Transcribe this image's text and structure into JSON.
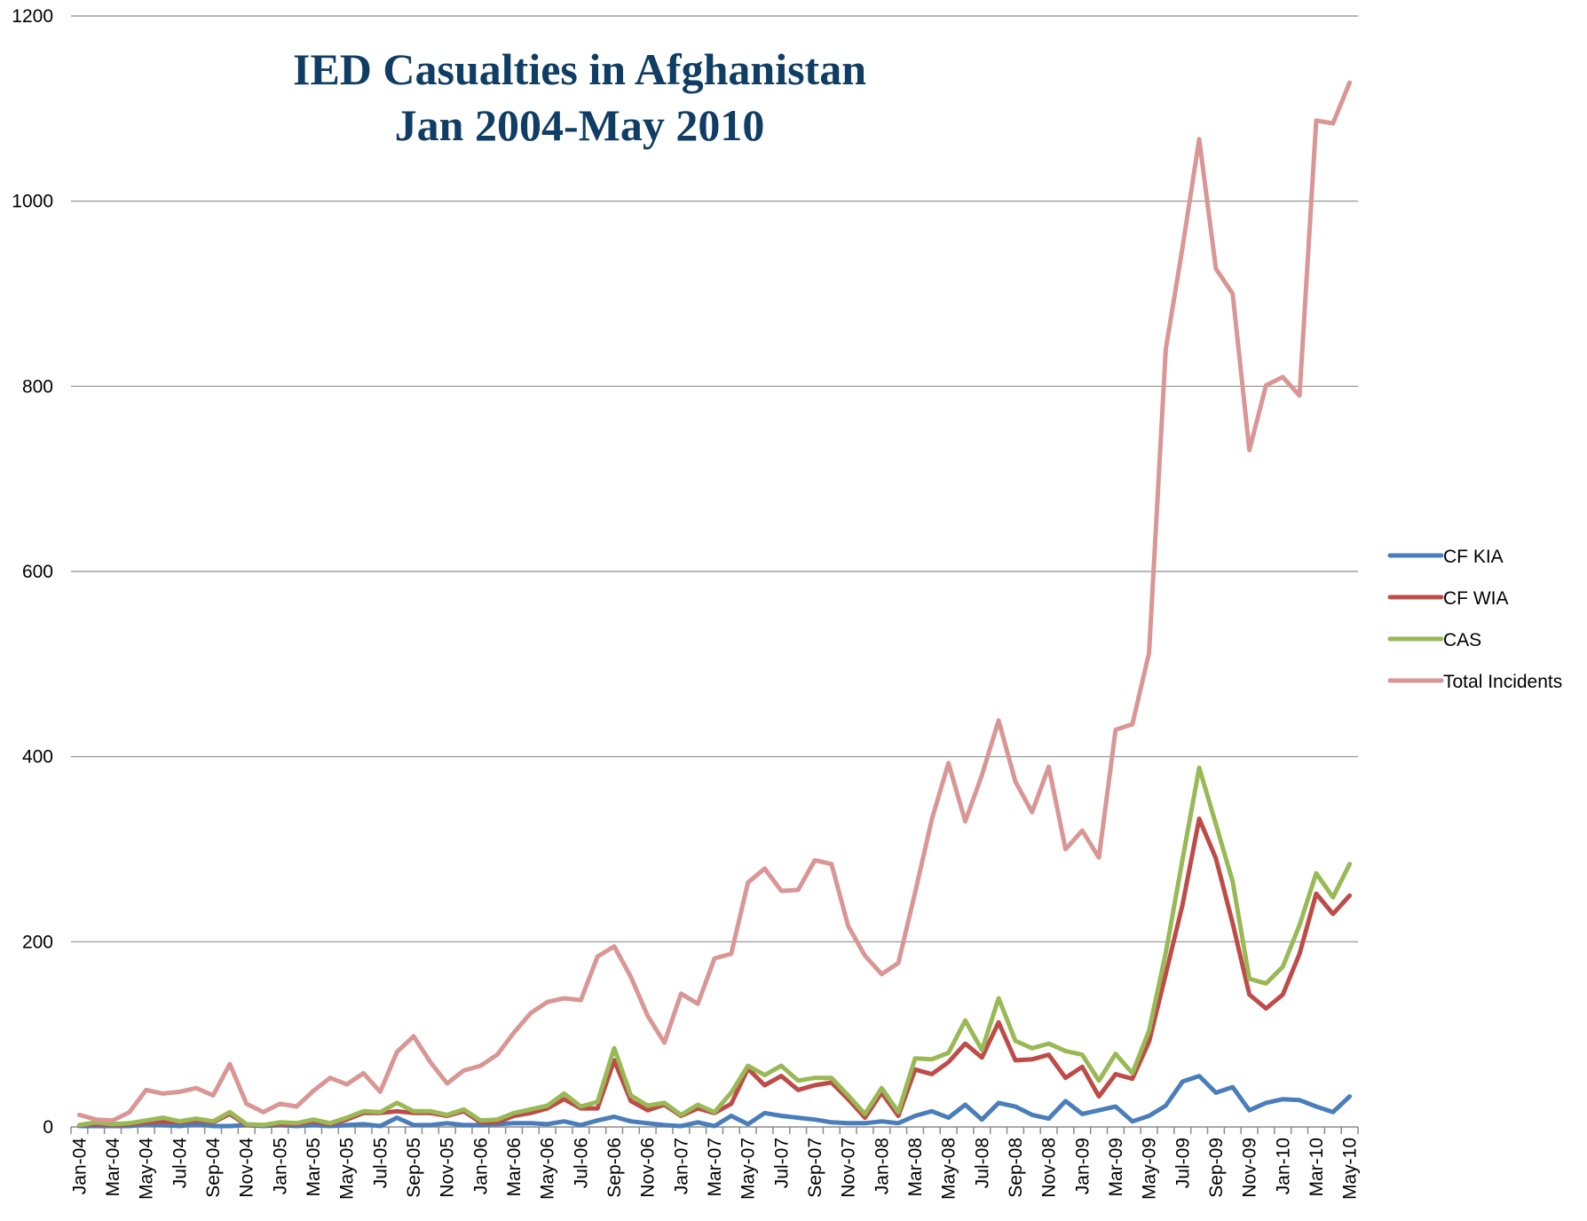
{
  "chart_data": {
    "type": "line",
    "title": [
      "IED Casualties in Afghanistan",
      "Jan 2004-May 2010"
    ],
    "xlabel": "",
    "ylabel": "",
    "ylim": [
      0,
      1200
    ],
    "yticks": [
      "0",
      "200",
      "400",
      "600",
      "800",
      "1000",
      "1200"
    ],
    "grid": "horizontal",
    "legend_position": "right",
    "x": [
      "Jan-04",
      "Feb-04",
      "Mar-04",
      "Apr-04",
      "May-04",
      "Jun-04",
      "Jul-04",
      "Aug-04",
      "Sep-04",
      "Oct-04",
      "Nov-04",
      "Dec-04",
      "Jan-05",
      "Feb-05",
      "Mar-05",
      "Apr-05",
      "May-05",
      "Jun-05",
      "Jul-05",
      "Aug-05",
      "Sep-05",
      "Oct-05",
      "Nov-05",
      "Dec-05",
      "Jan-06",
      "Feb-06",
      "Mar-06",
      "Apr-06",
      "May-06",
      "Jun-06",
      "Jul-06",
      "Aug-06",
      "Sep-06",
      "Oct-06",
      "Nov-06",
      "Dec-06",
      "Jan-07",
      "Feb-07",
      "Mar-07",
      "Apr-07",
      "May-07",
      "Jun-07",
      "Jul-07",
      "Aug-07",
      "Sep-07",
      "Oct-07",
      "Nov-07",
      "Dec-07",
      "Jan-08",
      "Feb-08",
      "Mar-08",
      "Apr-08",
      "May-08",
      "Jun-08",
      "Jul-08",
      "Aug-08",
      "Sep-08",
      "Oct-08",
      "Nov-08",
      "Dec-08",
      "Jan-09",
      "Feb-09",
      "Mar-09",
      "Apr-09",
      "May-09",
      "Jun-09",
      "Jul-09",
      "Aug-09",
      "Sep-09",
      "Oct-09",
      "Nov-09",
      "Dec-09",
      "Jan-10",
      "Feb-10",
      "Mar-10",
      "Apr-10",
      "May-10"
    ],
    "xtick_labels": [
      "Jan-04",
      "Mar-04",
      "May-04",
      "Jul-04",
      "Sep-04",
      "Nov-04",
      "Jan-05",
      "Mar-05",
      "May-05",
      "Jul-05",
      "Sep-05",
      "Nov-05",
      "Jan-06",
      "Mar-06",
      "May-06",
      "Jul-06",
      "Sep-06",
      "Nov-06",
      "Jan-07",
      "Mar-07",
      "May-07",
      "Jul-07",
      "Sep-07",
      "Nov-07",
      "Jan-08",
      "Mar-08",
      "May-08",
      "Jul-08",
      "Sep-08",
      "Nov-08",
      "Jan-09",
      "Mar-09",
      "May-09",
      "Jul-09",
      "Sep-09",
      "Nov-09",
      "Jan-10",
      "Mar-10",
      "May-10"
    ],
    "series": [
      {
        "name": "CF KIA",
        "color": "#4a7ebb",
        "values": [
          1,
          1,
          1,
          1,
          3,
          2,
          1,
          3,
          1,
          1,
          2,
          1,
          2,
          1,
          2,
          1,
          2,
          3,
          1,
          10,
          2,
          2,
          4,
          2,
          2,
          3,
          4,
          4,
          3,
          6,
          2,
          7,
          11,
          6,
          4,
          2,
          1,
          5,
          1,
          12,
          3,
          15,
          12,
          10,
          8,
          5,
          4,
          4,
          6,
          4,
          12,
          17,
          10,
          24,
          8,
          26,
          22,
          13,
          9,
          28,
          14,
          18,
          22,
          6,
          12,
          23,
          49,
          55,
          37,
          43,
          18,
          26,
          30,
          29,
          22,
          16,
          33
        ]
      },
      {
        "name": "CF WIA",
        "color": "#be4b48",
        "values": [
          2,
          3,
          2,
          3,
          5,
          6,
          5,
          7,
          5,
          14,
          2,
          2,
          3,
          3,
          6,
          3,
          8,
          15,
          15,
          17,
          15,
          15,
          12,
          17,
          5,
          5,
          12,
          15,
          20,
          30,
          20,
          20,
          72,
          28,
          18,
          24,
          12,
          20,
          15,
          25,
          63,
          45,
          55,
          40,
          45,
          48,
          30,
          10,
          37,
          12,
          62,
          57,
          70,
          90,
          75,
          113,
          72,
          73,
          78,
          53,
          65,
          33,
          57,
          52,
          92,
          165,
          240,
          333,
          290,
          220,
          143,
          128,
          143,
          187,
          252,
          230,
          250
        ]
      },
      {
        "name": "CAS",
        "color": "#98b954",
        "values": [
          2,
          5,
          3,
          4,
          7,
          10,
          6,
          9,
          6,
          16,
          3,
          2,
          5,
          4,
          8,
          4,
          10,
          17,
          16,
          26,
          17,
          17,
          13,
          19,
          7,
          8,
          15,
          19,
          23,
          36,
          22,
          27,
          85,
          34,
          23,
          26,
          13,
          24,
          16,
          37,
          66,
          56,
          66,
          50,
          53,
          53,
          34,
          14,
          42,
          16,
          74,
          73,
          80,
          115,
          83,
          139,
          93,
          85,
          90,
          82,
          78,
          50,
          79,
          58,
          104,
          188,
          289,
          388,
          327,
          265,
          160,
          155,
          173,
          218,
          274,
          248,
          284
        ]
      },
      {
        "name": "Total Incidents",
        "color": "#d99694",
        "values": [
          13,
          8,
          7,
          16,
          40,
          36,
          38,
          42,
          34,
          68,
          25,
          16,
          25,
          22,
          39,
          53,
          46,
          58,
          38,
          81,
          98,
          70,
          47,
          61,
          66,
          78,
          102,
          123,
          135,
          139,
          137,
          184,
          195,
          162,
          120,
          91,
          144,
          133,
          182,
          187,
          264,
          279,
          255,
          256,
          288,
          284,
          217,
          185,
          165,
          177,
          253,
          332,
          393,
          330,
          380,
          439,
          373,
          340,
          389,
          300,
          320,
          291,
          429,
          435,
          512,
          840,
          950,
          1067,
          927,
          900,
          731,
          801,
          810,
          790,
          1087,
          1084,
          1128
        ]
      }
    ]
  }
}
